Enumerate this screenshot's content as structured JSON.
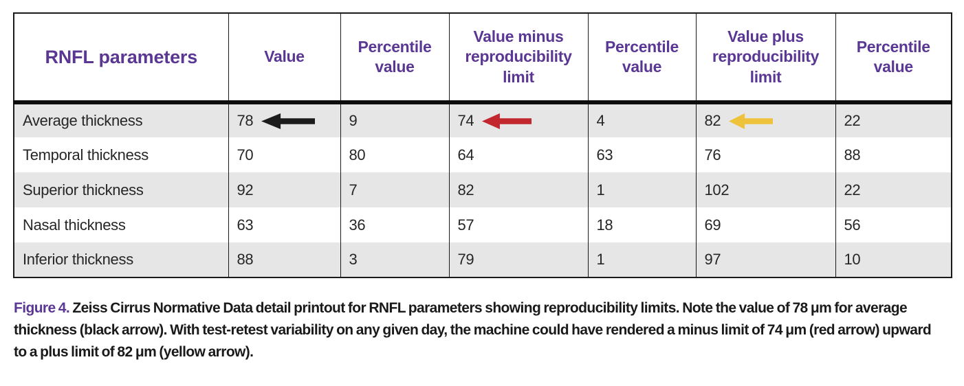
{
  "figure": {
    "table": {
      "columns": [
        "RNFL parameters",
        "Value",
        "Percentile value",
        "Value minus reproducibility limit",
        "Percentile value",
        "Value plus reproducibility limit",
        "Percentile value"
      ],
      "rows": [
        {
          "cells": [
            {
              "text": "Average thickness"
            },
            {
              "text": "78",
              "arrow": "black"
            },
            {
              "text": "9"
            },
            {
              "text": "74",
              "arrow": "red"
            },
            {
              "text": "4"
            },
            {
              "text": "82",
              "arrow": "yellow"
            },
            {
              "text": "22"
            }
          ]
        },
        {
          "cells": [
            {
              "text": "Temporal thickness"
            },
            {
              "text": "70"
            },
            {
              "text": "80"
            },
            {
              "text": "64"
            },
            {
              "text": "63"
            },
            {
              "text": "76"
            },
            {
              "text": "88"
            }
          ]
        },
        {
          "cells": [
            {
              "text": "Superior thickness"
            },
            {
              "text": "92"
            },
            {
              "text": "7"
            },
            {
              "text": "82"
            },
            {
              "text": "1"
            },
            {
              "text": "102"
            },
            {
              "text": "22"
            }
          ]
        },
        {
          "cells": [
            {
              "text": "Nasal thickness"
            },
            {
              "text": "63"
            },
            {
              "text": "36"
            },
            {
              "text": "57"
            },
            {
              "text": "18"
            },
            {
              "text": "69"
            },
            {
              "text": "56"
            }
          ]
        },
        {
          "cells": [
            {
              "text": "Inferior thickness"
            },
            {
              "text": "88"
            },
            {
              "text": "3"
            },
            {
              "text": "79"
            },
            {
              "text": "1"
            },
            {
              "text": "97"
            },
            {
              "text": "10"
            }
          ]
        }
      ]
    },
    "caption": {
      "label": "Figure 4.",
      "lines": [
        "Zeiss Cirrus Normative Data detail printout for RNFL parameters showing reproducibility limits. Note the value of 78 μm for average",
        "thickness (black arrow). With test-retest variability on any given day, the machine could have rendered a minus limit of 74 μm (red arrow) upward",
        "to a plus limit of 82 μm (yellow arrow)."
      ]
    },
    "colors": {
      "header_text": "#5b3794",
      "caption_label": "#5b3794",
      "row_stripe": "#e6e6e6",
      "arrow_black": "#1c1c1c",
      "arrow_red": "#c1272d",
      "arrow_yellow": "#eec33b"
    }
  }
}
